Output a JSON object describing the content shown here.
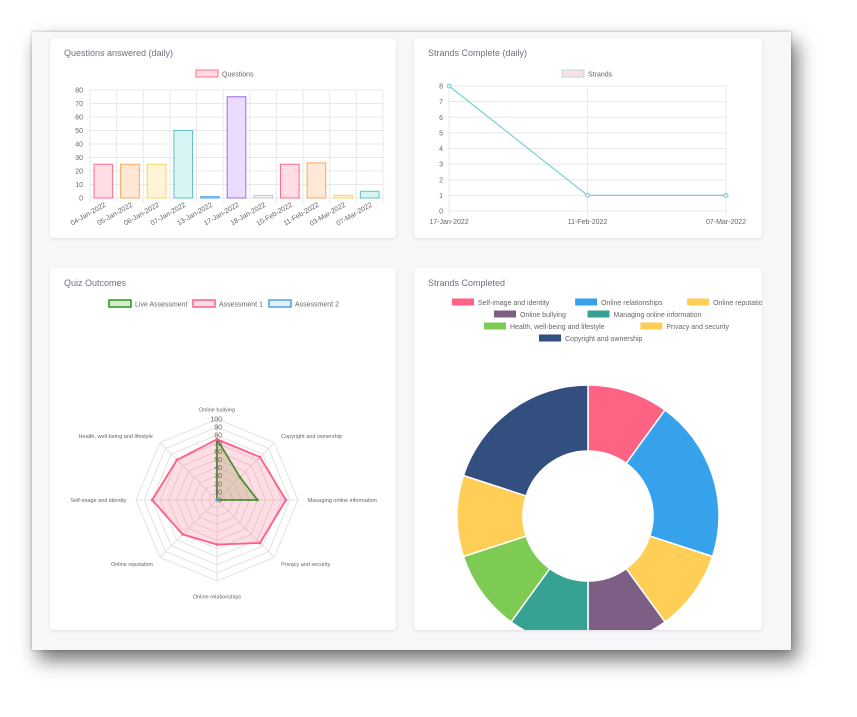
{
  "cards": {
    "questions": {
      "title": "Questions answered (daily)"
    },
    "strands_daily": {
      "title": "Strands Complete (daily)"
    },
    "quiz": {
      "title": "Quiz Outcomes"
    },
    "strands_completed": {
      "title": "Strands Completed"
    }
  },
  "chart_data": [
    {
      "id": "questions",
      "type": "bar",
      "title": "Questions answered (daily)",
      "categories": [
        "04-Jan-2022",
        "05-Jan-2022",
        "06-Jan-2022",
        "07-Jan-2022",
        "13-Jan-2022",
        "17-Jan-2022",
        "18-Jan-2022",
        "10-Feb-2022",
        "11-Feb-2022",
        "03-Mar-2022",
        "07-Mar-2022"
      ],
      "series": [
        {
          "name": "Questions",
          "values": [
            25,
            25,
            25,
            50,
            1,
            75,
            2,
            25,
            26,
            2,
            5
          ]
        }
      ],
      "ylim": [
        0,
        80
      ],
      "yticks": [
        0,
        10,
        20,
        30,
        40,
        50,
        60,
        70,
        80
      ],
      "grid": true,
      "legend": "top-center",
      "colors": [
        {
          "fill": "#ffdde4",
          "stroke": "#ff6b8a"
        },
        {
          "fill": "#ffe9d6",
          "stroke": "#ffa55c"
        },
        {
          "fill": "#fff4d6",
          "stroke": "#ffd45c"
        },
        {
          "fill": "#d8f3f3",
          "stroke": "#5cc4c4"
        },
        {
          "fill": "#d6ecfb",
          "stroke": "#4aa3e6"
        },
        {
          "fill": "#ebdcfd",
          "stroke": "#9b6cf2"
        },
        {
          "fill": "#f0f1f3",
          "stroke": "#c6c9ce"
        },
        {
          "fill": "#ffdde4",
          "stroke": "#ff6b8a"
        },
        {
          "fill": "#ffe9d6",
          "stroke": "#ffa55c"
        },
        {
          "fill": "#fff4d6",
          "stroke": "#ffd45c"
        },
        {
          "fill": "#d8f3f3",
          "stroke": "#5cc4c4"
        }
      ],
      "legend_swatch": {
        "fill": "#ffdde4",
        "stroke": "#ff6b8a"
      }
    },
    {
      "id": "strands_daily",
      "type": "line",
      "title": "Strands Complete (daily)",
      "x": [
        "17-Jan-2022",
        "11-Feb-2022",
        "07-Mar-2022"
      ],
      "series": [
        {
          "name": "Strands",
          "values": [
            8,
            1,
            1
          ]
        }
      ],
      "ylim": [
        0,
        8
      ],
      "yticks": [
        0,
        1,
        2,
        3,
        4,
        5,
        6,
        7,
        8
      ],
      "grid": true,
      "legend": "top-center",
      "line_color": "#7dcfd3",
      "legend_swatch": {
        "fill": "#ffdde4",
        "stroke": "#a9dfe2"
      }
    },
    {
      "id": "quiz",
      "type": "radar",
      "title": "Quiz Outcomes",
      "axes": [
        "Online bullying",
        "Copyright and ownership",
        "Managing online information",
        "Privacy and security",
        "Online relationships",
        "Online reputation",
        "Self-image and identity",
        "Health, well-being and lifestyle"
      ],
      "rlim": [
        0,
        100
      ],
      "rticks": [
        0,
        10,
        20,
        30,
        40,
        50,
        60,
        70,
        80,
        90,
        100
      ],
      "legend": "top-center",
      "series": [
        {
          "name": "Live Assessment",
          "values": [
            75,
            40,
            50,
            0,
            0,
            0,
            0,
            0
          ],
          "stroke": "#1f9a1f",
          "fill": "rgba(150,190,110,0.35)"
        },
        {
          "name": "Assessment 1",
          "values": [
            75,
            75,
            85,
            75,
            55,
            60,
            80,
            70
          ],
          "stroke": "#ff5f86",
          "fill": "rgba(255,99,132,0.22)"
        },
        {
          "name": "Assessment 2",
          "values": [
            0,
            0,
            0,
            0,
            0,
            0,
            0,
            0
          ],
          "stroke": "#4aa3e6",
          "fill": "rgba(54,162,235,0.15)"
        }
      ]
    },
    {
      "id": "strands_completed",
      "type": "pie",
      "title": "Strands Completed",
      "legend": "top",
      "labels": [
        "Self-image and identity",
        "Online relationships",
        "Online reputation",
        "Online bullying",
        "Managing online information",
        "Health, well-being and lifestyle",
        "Privacy and security",
        "Copyright and ownership"
      ],
      "values": [
        1,
        2,
        1,
        1,
        1,
        1,
        1,
        2
      ],
      "colors": [
        "#ff6384",
        "#36a2eb",
        "#ffce56",
        "#7d5f86",
        "#36a293",
        "#7ecb54",
        "#ffce56",
        "#334f80"
      ]
    }
  ]
}
